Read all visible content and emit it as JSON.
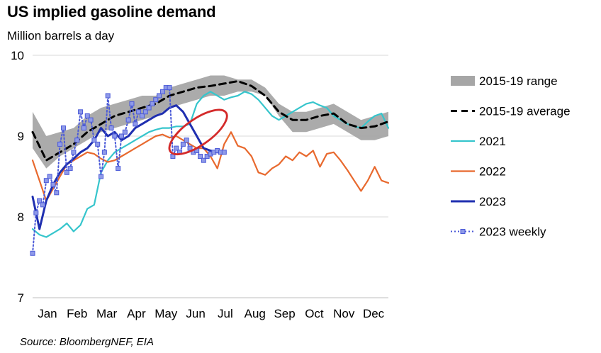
{
  "chart_data": {
    "type": "line",
    "title": "US implied gasoline demand",
    "ylabel": "Million barrels a day",
    "source": "Source: BloombergNEF, EIA",
    "ylim": [
      7,
      10
    ],
    "yticks": [
      "7",
      "8",
      "9",
      "10"
    ],
    "xlim": [
      0,
      52
    ],
    "months": [
      "Jan",
      "Feb",
      "Mar",
      "Apr",
      "May",
      "Jun",
      "Jul",
      "Aug",
      "Sep",
      "Oct",
      "Nov",
      "Dec"
    ],
    "grid": true,
    "legend_position": "right",
    "range": {
      "name": "2015-19 range",
      "color": "#a6a6a6",
      "x": [
        0,
        2,
        4,
        6,
        8,
        10,
        12,
        14,
        16,
        18,
        20,
        22,
        24,
        26,
        28,
        30,
        32,
        34,
        36,
        38,
        40,
        42,
        44,
        46,
        48,
        50,
        52
      ],
      "low": [
        8.85,
        8.6,
        8.75,
        8.85,
        8.95,
        9.05,
        9.1,
        9.15,
        9.2,
        9.25,
        9.35,
        9.4,
        9.45,
        9.5,
        9.5,
        9.55,
        9.55,
        9.5,
        9.25,
        9.05,
        9.05,
        9.1,
        9.15,
        9.05,
        8.95,
        8.95,
        9.0
      ],
      "high": [
        9.3,
        9.0,
        9.05,
        9.1,
        9.25,
        9.35,
        9.4,
        9.45,
        9.5,
        9.5,
        9.6,
        9.65,
        9.7,
        9.75,
        9.75,
        9.7,
        9.7,
        9.6,
        9.4,
        9.3,
        9.3,
        9.35,
        9.4,
        9.3,
        9.2,
        9.25,
        9.3
      ]
    },
    "series": [
      {
        "name": "2015-19 average",
        "color": "#000000",
        "dash": "9,6",
        "width": 3,
        "x": [
          0,
          2,
          4,
          6,
          8,
          10,
          12,
          14,
          16,
          18,
          20,
          22,
          24,
          26,
          28,
          30,
          32,
          34,
          36,
          38,
          40,
          42,
          44,
          46,
          48,
          50,
          52
        ],
        "y": [
          9.05,
          8.7,
          8.8,
          8.9,
          9.05,
          9.15,
          9.25,
          9.3,
          9.35,
          9.4,
          9.5,
          9.55,
          9.6,
          9.62,
          9.65,
          9.68,
          9.62,
          9.5,
          9.3,
          9.2,
          9.2,
          9.25,
          9.28,
          9.15,
          9.1,
          9.12,
          9.18
        ]
      },
      {
        "name": "2021",
        "color": "#36c5cc",
        "dash": "",
        "width": 2.2,
        "x": [
          0,
          1,
          2,
          3,
          4,
          5,
          6,
          7,
          8,
          9,
          10,
          11,
          12,
          13,
          14,
          15,
          16,
          17,
          18,
          19,
          20,
          21,
          22,
          23,
          24,
          25,
          26,
          27,
          28,
          29,
          30,
          31,
          32,
          33,
          34,
          35,
          36,
          37,
          38,
          39,
          40,
          41,
          42,
          43,
          44,
          45,
          46,
          47,
          48,
          49,
          50,
          51,
          52
        ],
        "y": [
          7.85,
          7.78,
          7.75,
          7.8,
          7.85,
          7.92,
          7.82,
          7.9,
          8.1,
          8.15,
          8.55,
          8.7,
          8.8,
          8.85,
          8.9,
          8.95,
          9.0,
          9.05,
          9.08,
          9.1,
          9.1,
          9.12,
          9.12,
          9.15,
          9.4,
          9.5,
          9.55,
          9.5,
          9.45,
          9.48,
          9.5,
          9.55,
          9.52,
          9.45,
          9.35,
          9.25,
          9.2,
          9.25,
          9.3,
          9.35,
          9.4,
          9.42,
          9.38,
          9.35,
          9.25,
          9.2,
          9.15,
          9.12,
          9.1,
          9.18,
          9.25,
          9.28,
          9.1
        ]
      },
      {
        "name": "2022",
        "color": "#e8692e",
        "dash": "",
        "width": 2.2,
        "x": [
          0,
          1,
          2,
          3,
          4,
          5,
          6,
          7,
          8,
          9,
          10,
          11,
          12,
          13,
          14,
          15,
          16,
          17,
          18,
          19,
          20,
          21,
          22,
          23,
          24,
          25,
          26,
          27,
          28,
          29,
          30,
          31,
          32,
          33,
          34,
          35,
          36,
          37,
          38,
          39,
          40,
          41,
          42,
          43,
          44,
          45,
          46,
          47,
          48,
          49,
          50,
          51,
          52
        ],
        "y": [
          8.7,
          8.45,
          8.2,
          8.35,
          8.5,
          8.65,
          8.7,
          8.75,
          8.8,
          8.78,
          8.72,
          8.68,
          8.7,
          8.75,
          8.8,
          8.85,
          8.9,
          8.95,
          9.0,
          9.02,
          8.98,
          9.0,
          8.95,
          8.9,
          8.85,
          8.85,
          8.75,
          8.6,
          8.9,
          9.05,
          8.88,
          8.85,
          8.75,
          8.55,
          8.52,
          8.6,
          8.65,
          8.75,
          8.7,
          8.8,
          8.75,
          8.82,
          8.62,
          8.78,
          8.8,
          8.7,
          8.58,
          8.45,
          8.32,
          8.45,
          8.62,
          8.45,
          8.42
        ]
      },
      {
        "name": "2023",
        "color": "#1f2fb0",
        "dash": "",
        "width": 3,
        "x": [
          0,
          1,
          2,
          3,
          4,
          5,
          6,
          7,
          8,
          9,
          10,
          11,
          12,
          13,
          14,
          15,
          16,
          17,
          18,
          19,
          20,
          21,
          22,
          23,
          24,
          25,
          26,
          27,
          28
        ],
        "y": [
          8.25,
          7.85,
          8.2,
          8.4,
          8.55,
          8.65,
          8.72,
          8.8,
          8.85,
          8.95,
          9.1,
          9.0,
          9.05,
          8.95,
          9.0,
          9.1,
          9.15,
          9.2,
          9.25,
          9.28,
          9.35,
          9.38,
          9.3,
          9.15,
          9.0,
          8.85,
          8.82,
          8.8,
          8.8
        ]
      },
      {
        "name": "2023 weekly",
        "color": "#4b5ad8",
        "dash": "2,3",
        "width": 2,
        "marker": "square",
        "x": [
          0,
          0.5,
          1,
          1.5,
          2,
          2.5,
          3,
          3.5,
          4,
          4.5,
          5,
          5.5,
          6,
          6.5,
          7,
          7.5,
          8,
          8.5,
          9,
          9.5,
          10,
          10.5,
          11,
          11.5,
          12,
          12.5,
          13,
          13.5,
          14,
          14.5,
          15,
          15.5,
          16,
          16.5,
          17,
          17.5,
          18,
          18.5,
          19,
          19.5,
          20,
          20.5,
          21,
          21.5,
          22,
          22.5,
          23,
          23.5,
          24,
          24.5,
          25,
          25.5,
          26,
          26.5,
          27,
          27.5,
          28
        ],
        "y": [
          7.55,
          8.05,
          8.2,
          8.15,
          8.45,
          8.5,
          8.4,
          8.3,
          8.9,
          9.1,
          8.55,
          8.6,
          8.8,
          8.95,
          9.3,
          9.1,
          9.25,
          9.2,
          8.95,
          8.9,
          8.5,
          8.8,
          9.5,
          9.1,
          9.0,
          8.6,
          9.0,
          9.05,
          9.2,
          9.4,
          9.15,
          9.3,
          9.25,
          9.3,
          9.35,
          9.4,
          9.45,
          9.5,
          9.55,
          9.6,
          9.6,
          8.75,
          8.85,
          8.8,
          8.9,
          8.95,
          8.85,
          8.8,
          8.82,
          8.75,
          8.7,
          8.75,
          8.78,
          8.8,
          8.82,
          8.8,
          8.8
        ]
      }
    ],
    "annotation": {
      "type": "ellipse",
      "color": "#d42a2a",
      "cx": 24.2,
      "cy": 9.05,
      "rx": 1.9,
      "ry": 0.42,
      "rotation_deg": -35
    }
  }
}
